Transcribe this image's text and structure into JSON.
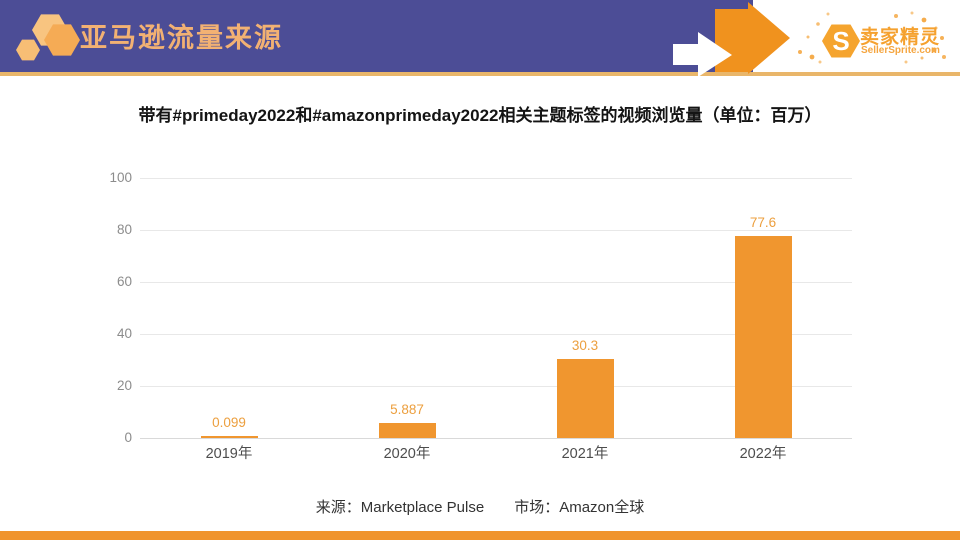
{
  "header": {
    "title": "亚马逊流量来源",
    "colors": {
      "bar_bg": "#4C4D96",
      "title_text": "#F2B173",
      "underline": "#E9B66A",
      "accent_orange": "#F0921E"
    }
  },
  "logo": {
    "initial": "S",
    "brand_cn": "卖家精灵",
    "brand_en": "SellerSprite.com",
    "color": "#F5A12F"
  },
  "chart_data": {
    "type": "bar",
    "title": "带有#primeday2022和#amazonprimeday2022相关主题标签的视频浏览量（单位：百万）",
    "categories": [
      "2019年",
      "2020年",
      "2021年",
      "2022年"
    ],
    "values": [
      0.099,
      5.887,
      30.3,
      77.6
    ],
    "value_labels": [
      "0.099",
      "5.887",
      "30.3",
      "77.6"
    ],
    "unit": "百万",
    "xlabel": "",
    "ylabel": "",
    "ylim": [
      0,
      100
    ],
    "yticks": [
      0,
      20,
      40,
      60,
      80,
      100
    ],
    "grid": true,
    "legend": null,
    "bar_color": "#F0962F",
    "value_label_color": "#EC9F3E"
  },
  "footer": {
    "source_label": "来源：Marketplace Pulse",
    "market_label": "市场：Amazon全球",
    "strip_color": "#F0942D"
  }
}
